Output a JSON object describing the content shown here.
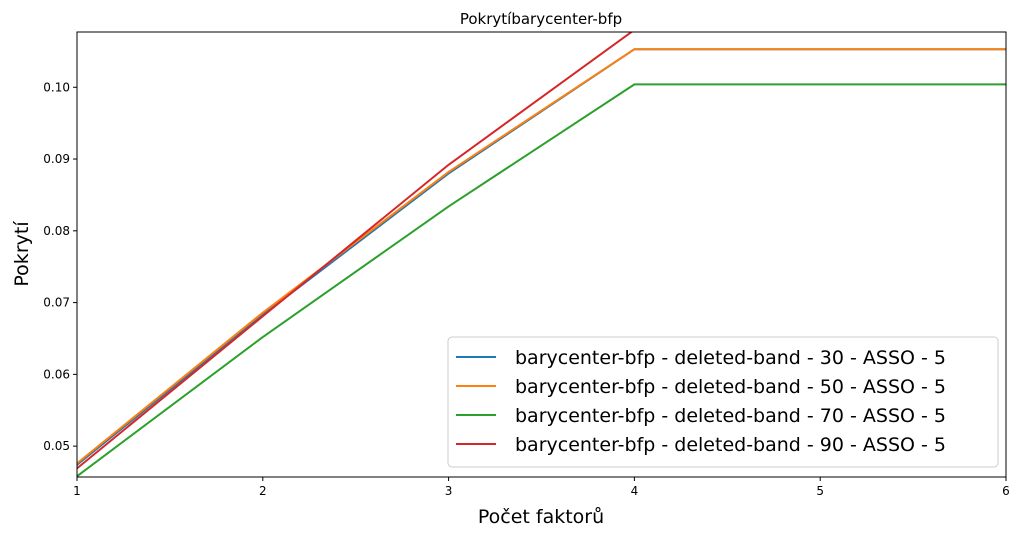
{
  "chart_data": {
    "type": "line",
    "title": "Pokrytíbarycenter-bfp",
    "xlabel": "Počet faktorů",
    "ylabel": "Pokrytí",
    "xlim": [
      1,
      6
    ],
    "ylim": [
      0.0457,
      0.1077
    ],
    "xticks": [
      "1",
      "2",
      "3",
      "4",
      "5",
      "6"
    ],
    "yticks": [
      "0.05",
      "0.06",
      "0.07",
      "0.08",
      "0.09",
      "0.10"
    ],
    "grid": false,
    "legend_position": "lower-right",
    "x": [
      1,
      2,
      3,
      4,
      5,
      6
    ],
    "series": [
      {
        "name": "barycenter-bfp - deleted-band - 30 - ASSO - 5",
        "color": "#1f77b4",
        "values": [
          0.0474,
          0.0683,
          0.088,
          0.1053,
          0.1053,
          0.1053
        ]
      },
      {
        "name": "barycenter-bfp - deleted-band - 50 - ASSO - 5",
        "color": "#ff7f0e",
        "values": [
          0.0476,
          0.0686,
          0.0882,
          0.1053,
          0.1053,
          0.1053
        ]
      },
      {
        "name": "barycenter-bfp - deleted-band - 70 - ASSO - 5",
        "color": "#2ca02c",
        "values": [
          0.0458,
          0.0652,
          0.0834,
          0.1004,
          0.1004,
          0.1004
        ]
      },
      {
        "name": "barycenter-bfp - deleted-band - 90 - ASSO - 5",
        "color": "#d62728",
        "values": [
          0.0469,
          0.0681,
          0.0892,
          0.108,
          0.108,
          0.108
        ]
      }
    ]
  }
}
